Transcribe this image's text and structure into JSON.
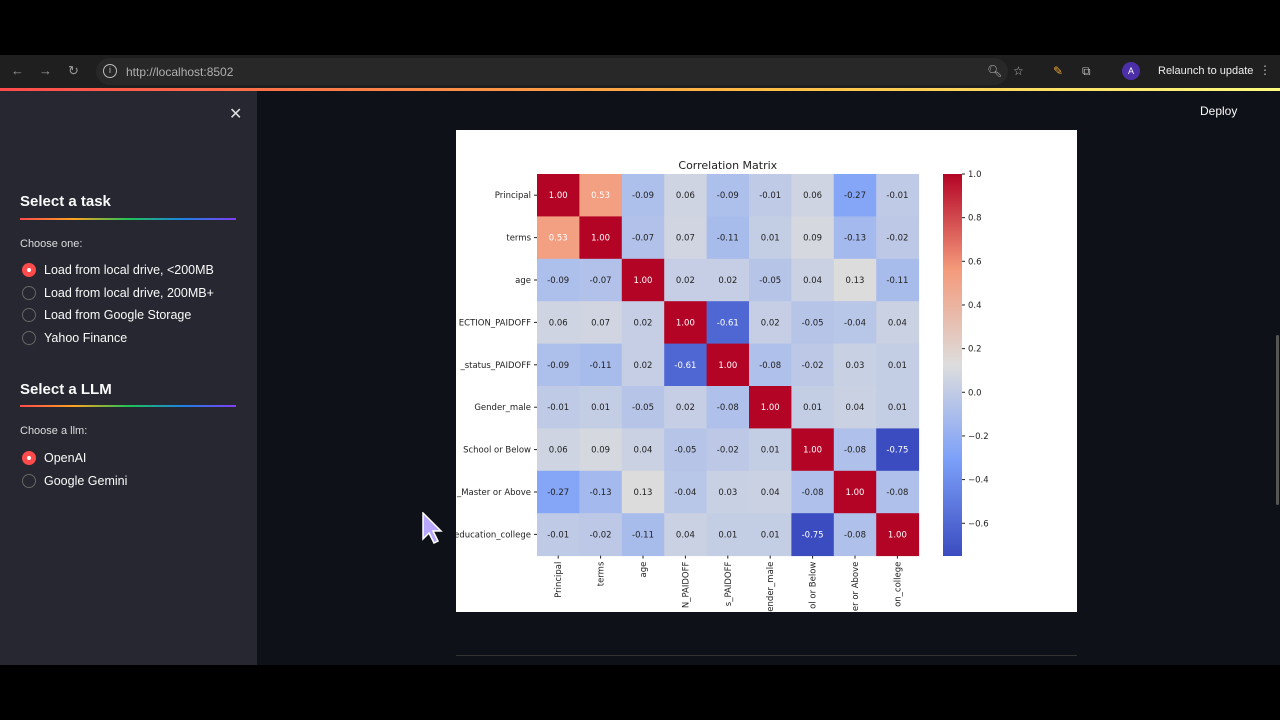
{
  "browser": {
    "url": "http://localhost:8502",
    "relaunch_label": "Relaunch to update",
    "avatar_letter": "A"
  },
  "sidebar": {
    "task_heading": "Select a task",
    "task_label": "Choose one:",
    "task_options": [
      "Load from local drive, <200MB",
      "Load from local drive, 200MB+",
      "Load from Google Storage",
      "Yahoo Finance"
    ],
    "task_selected": 0,
    "llm_heading": "Select a LLM",
    "llm_label": "Choose a llm:",
    "llm_options": [
      "OpenAI",
      "Google Gemini"
    ],
    "llm_selected": 0
  },
  "header": {
    "deploy_label": "Deploy"
  },
  "colors": {
    "accent": "#ff4b4b",
    "sidebar_bg": "#262730",
    "main_bg": "#0e1117"
  },
  "chart_data": {
    "type": "heatmap",
    "title": "Correlation Matrix",
    "row_labels": [
      "Principal",
      "terms",
      "age",
      "ECTION_PAIDOFF",
      "_status_PAIDOFF",
      "Gender_male",
      "School or Below",
      "_Master or Above",
      "education_college"
    ],
    "col_labels": [
      "Principal",
      "terms",
      "age",
      "N_PAIDOFF",
      "s_PAIDOFF",
      "ender_male",
      "ol or Below",
      "er or Above",
      "on_college"
    ],
    "values": [
      [
        1.0,
        0.53,
        -0.09,
        0.06,
        -0.09,
        -0.01,
        0.06,
        -0.27,
        -0.01
      ],
      [
        0.53,
        1.0,
        -0.07,
        0.07,
        -0.11,
        0.01,
        0.09,
        -0.13,
        -0.02
      ],
      [
        -0.09,
        -0.07,
        1.0,
        0.02,
        0.02,
        -0.05,
        0.04,
        0.13,
        -0.11
      ],
      [
        0.06,
        0.07,
        0.02,
        1.0,
        -0.61,
        0.02,
        -0.05,
        -0.04,
        0.04
      ],
      [
        -0.09,
        -0.11,
        0.02,
        -0.61,
        1.0,
        -0.08,
        -0.02,
        0.03,
        0.01
      ],
      [
        -0.01,
        0.01,
        -0.05,
        0.02,
        -0.08,
        1.0,
        0.01,
        0.04,
        0.01
      ],
      [
        0.06,
        0.09,
        0.04,
        -0.05,
        -0.02,
        0.01,
        1.0,
        -0.08,
        -0.75
      ],
      [
        -0.27,
        -0.13,
        0.13,
        -0.04,
        0.03,
        0.04,
        -0.08,
        1.0,
        -0.08
      ],
      [
        -0.01,
        -0.02,
        -0.11,
        0.04,
        0.01,
        0.01,
        -0.75,
        -0.08,
        1.0
      ]
    ],
    "colormap": "coolwarm",
    "vmin": -0.75,
    "vmax": 1.0,
    "colorbar_ticks": [
      "1.0",
      "0.8",
      "0.6",
      "0.4",
      "0.2",
      "0.0",
      "−0.2",
      "−0.4",
      "−0.6"
    ]
  }
}
